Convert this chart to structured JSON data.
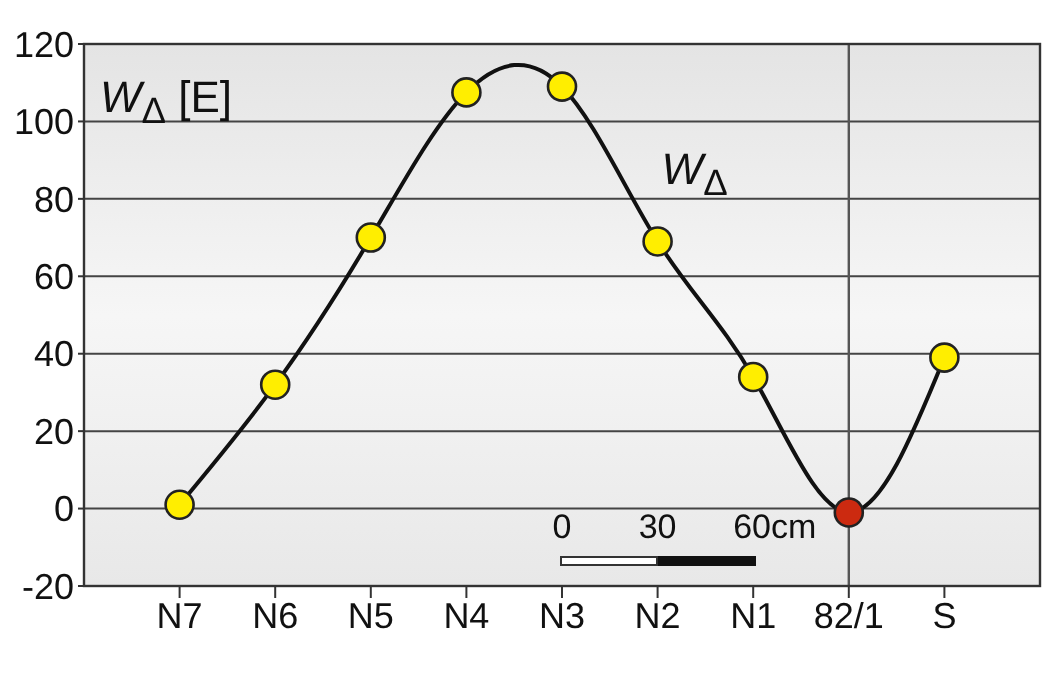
{
  "chart_data": {
    "type": "line",
    "ylabel": "W$_{Δ}$ [E]",
    "categories": [
      "N7",
      "N6",
      "N5",
      "N4",
      "N3",
      "N2",
      "N1",
      "82/1",
      "S"
    ],
    "series": [
      {
        "name": "W$_{Δ}$",
        "color": "#111111",
        "colors": [
          "#ffee00",
          "#ffee00",
          "#ffee00",
          "#ffee00",
          "#ffee00",
          "#ffee00",
          "#ffee00",
          "#cc2a10",
          "#ffee00"
        ],
        "values": [
          1,
          32,
          70,
          107.5,
          109,
          69,
          34,
          -1,
          39
        ]
      }
    ],
    "ylim": [
      -20,
      120
    ],
    "yticks": [
      -20,
      0,
      20,
      40,
      60,
      80,
      100,
      120
    ],
    "grid": "y",
    "marker": "circle",
    "line_style": "solid",
    "ref_lines": [
      {
        "axis": "x",
        "value": "82/1",
        "color": "#555555"
      }
    ],
    "annotations": [
      "0",
      "30",
      "60cm"
    ]
  }
}
